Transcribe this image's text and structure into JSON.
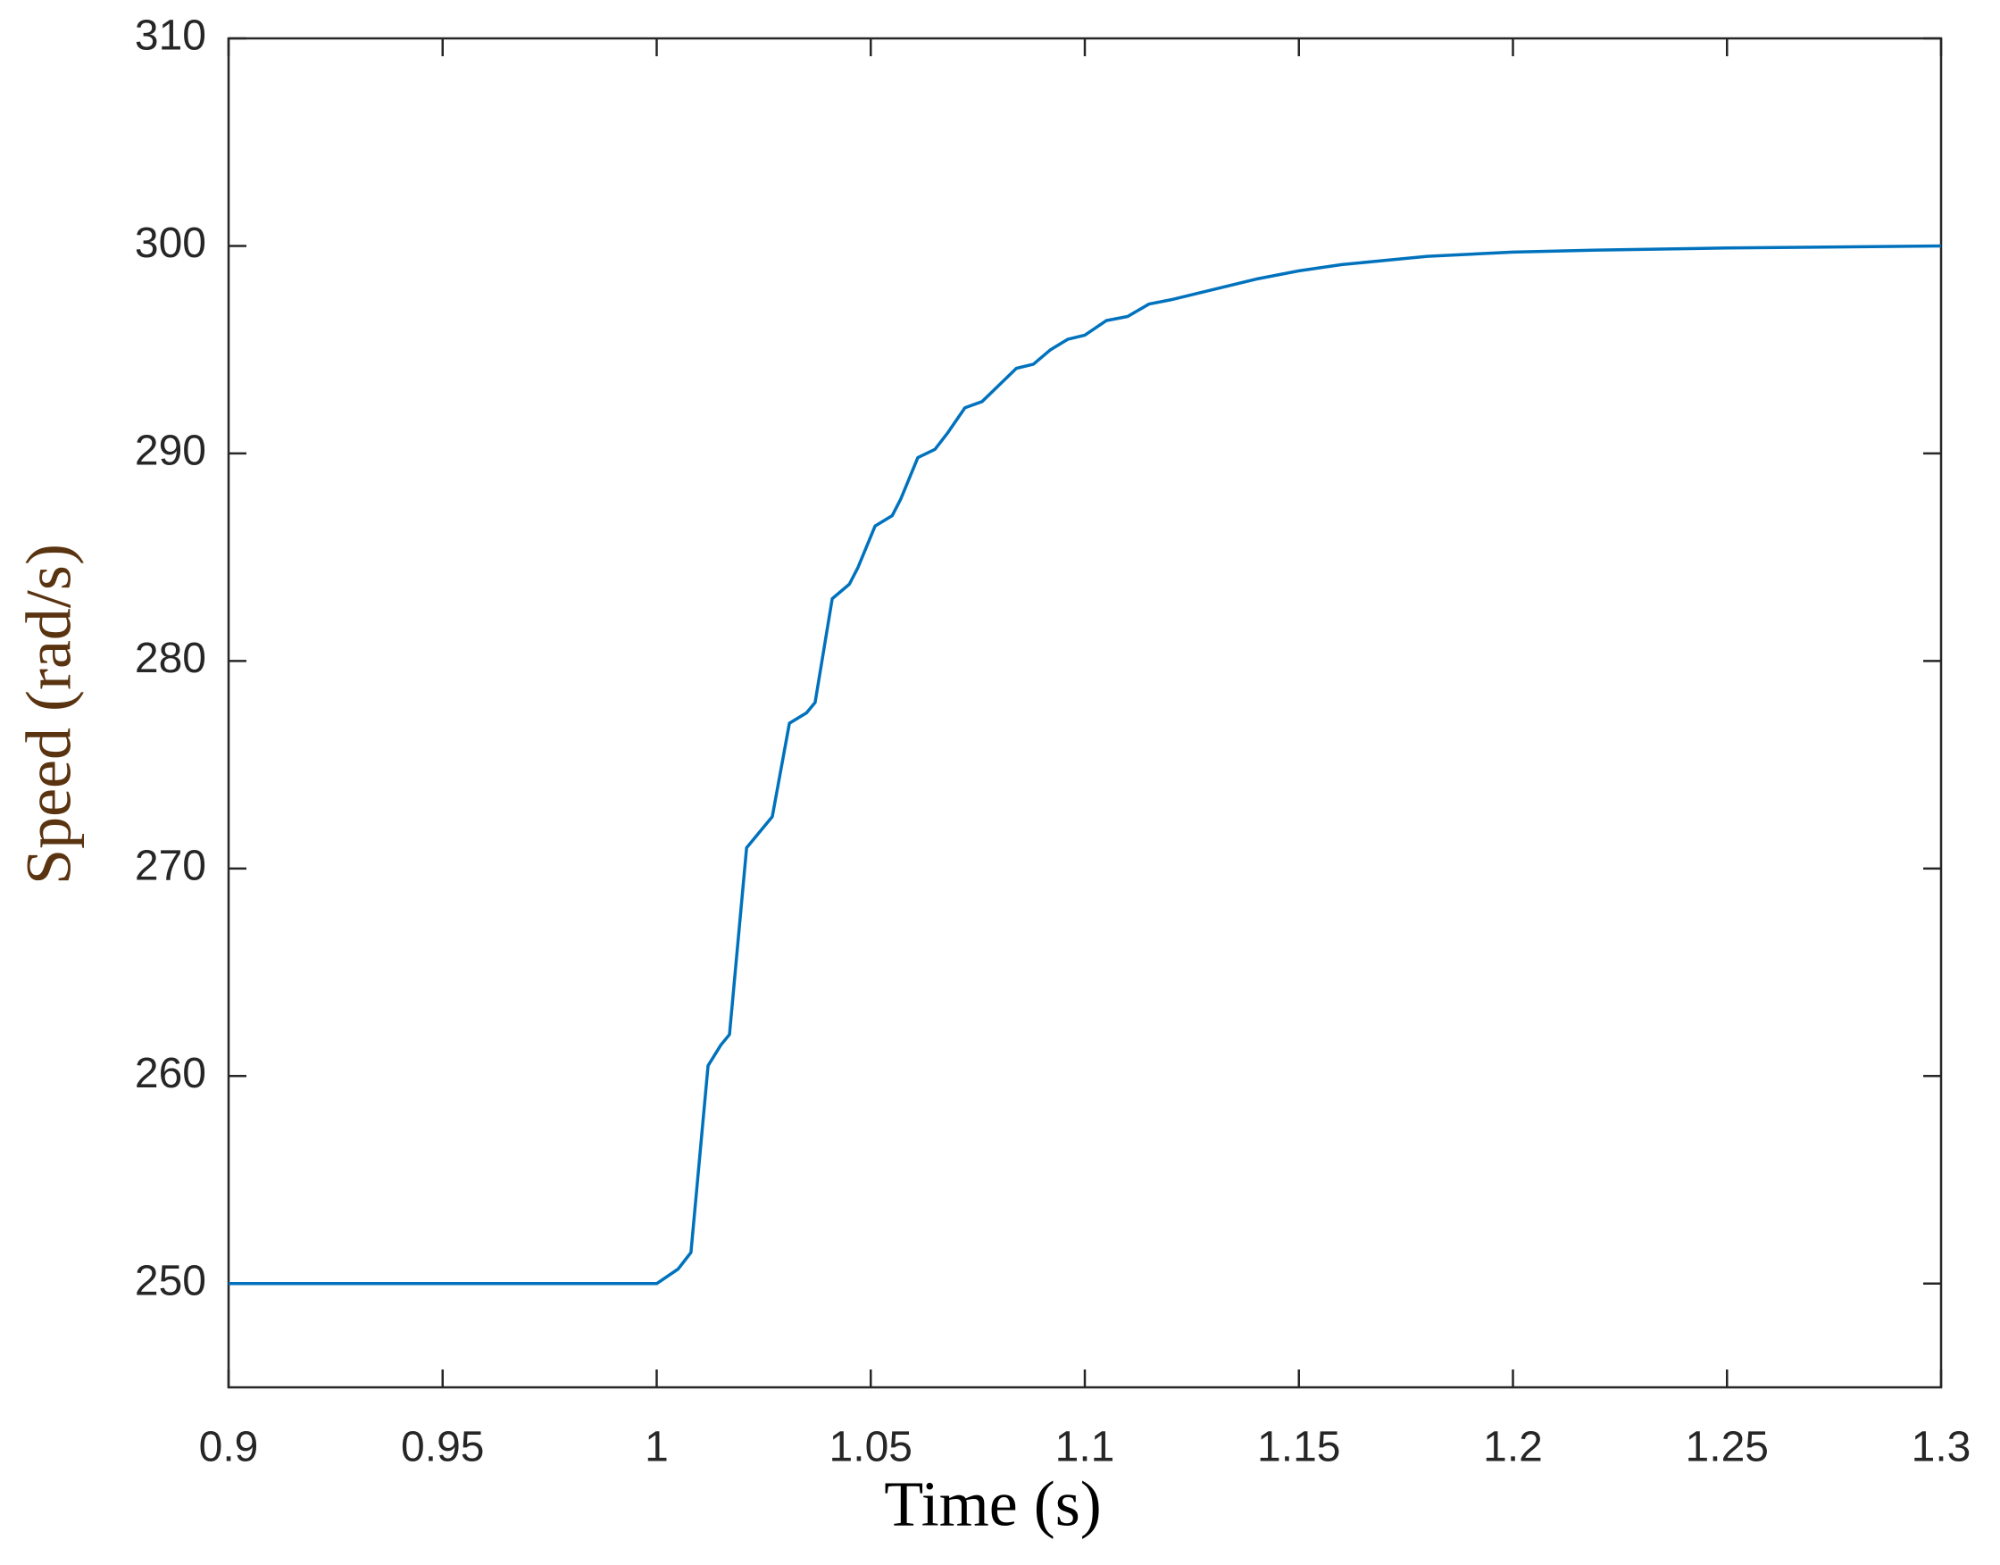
{
  "chart_data": {
    "type": "line",
    "xlabel": "Time (s)",
    "ylabel": "Speed (rad/s)",
    "x": [
      0.9,
      0.95,
      1.0,
      1.005,
      1.008,
      1.012,
      1.015,
      1.017,
      1.021,
      1.025,
      1.027,
      1.031,
      1.035,
      1.037,
      1.041,
      1.045,
      1.047,
      1.051,
      1.055,
      1.057,
      1.061,
      1.065,
      1.068,
      1.072,
      1.076,
      1.08,
      1.084,
      1.088,
      1.092,
      1.096,
      1.1,
      1.105,
      1.11,
      1.115,
      1.12,
      1.13,
      1.14,
      1.15,
      1.16,
      1.17,
      1.18,
      1.2,
      1.22,
      1.25,
      1.3
    ],
    "series": [
      {
        "name": "Speed",
        "color": "#0072bd",
        "values": [
          250,
          250,
          250,
          250.7,
          251.5,
          260.5,
          261.5,
          262,
          271,
          272,
          272.5,
          277,
          277.5,
          278,
          283,
          283.7,
          284.5,
          286.5,
          287,
          287.8,
          289.8,
          290.2,
          291,
          292.2,
          292.5,
          293.3,
          294.1,
          294.3,
          295,
          295.5,
          295.7,
          296.4,
          296.6,
          297.2,
          297.4,
          297.9,
          298.4,
          298.8,
          299.1,
          299.3,
          299.5,
          299.7,
          299.8,
          299.9,
          300
        ]
      }
    ],
    "xlim": [
      0.9,
      1.3
    ],
    "xticks": [
      0.9,
      0.95,
      1,
      1.05,
      1.1,
      1.15,
      1.2,
      1.25,
      1.3
    ],
    "ylim": [
      245,
      310
    ],
    "yticks": [
      250,
      260,
      270,
      280,
      290,
      300,
      310
    ],
    "grid": false
  }
}
